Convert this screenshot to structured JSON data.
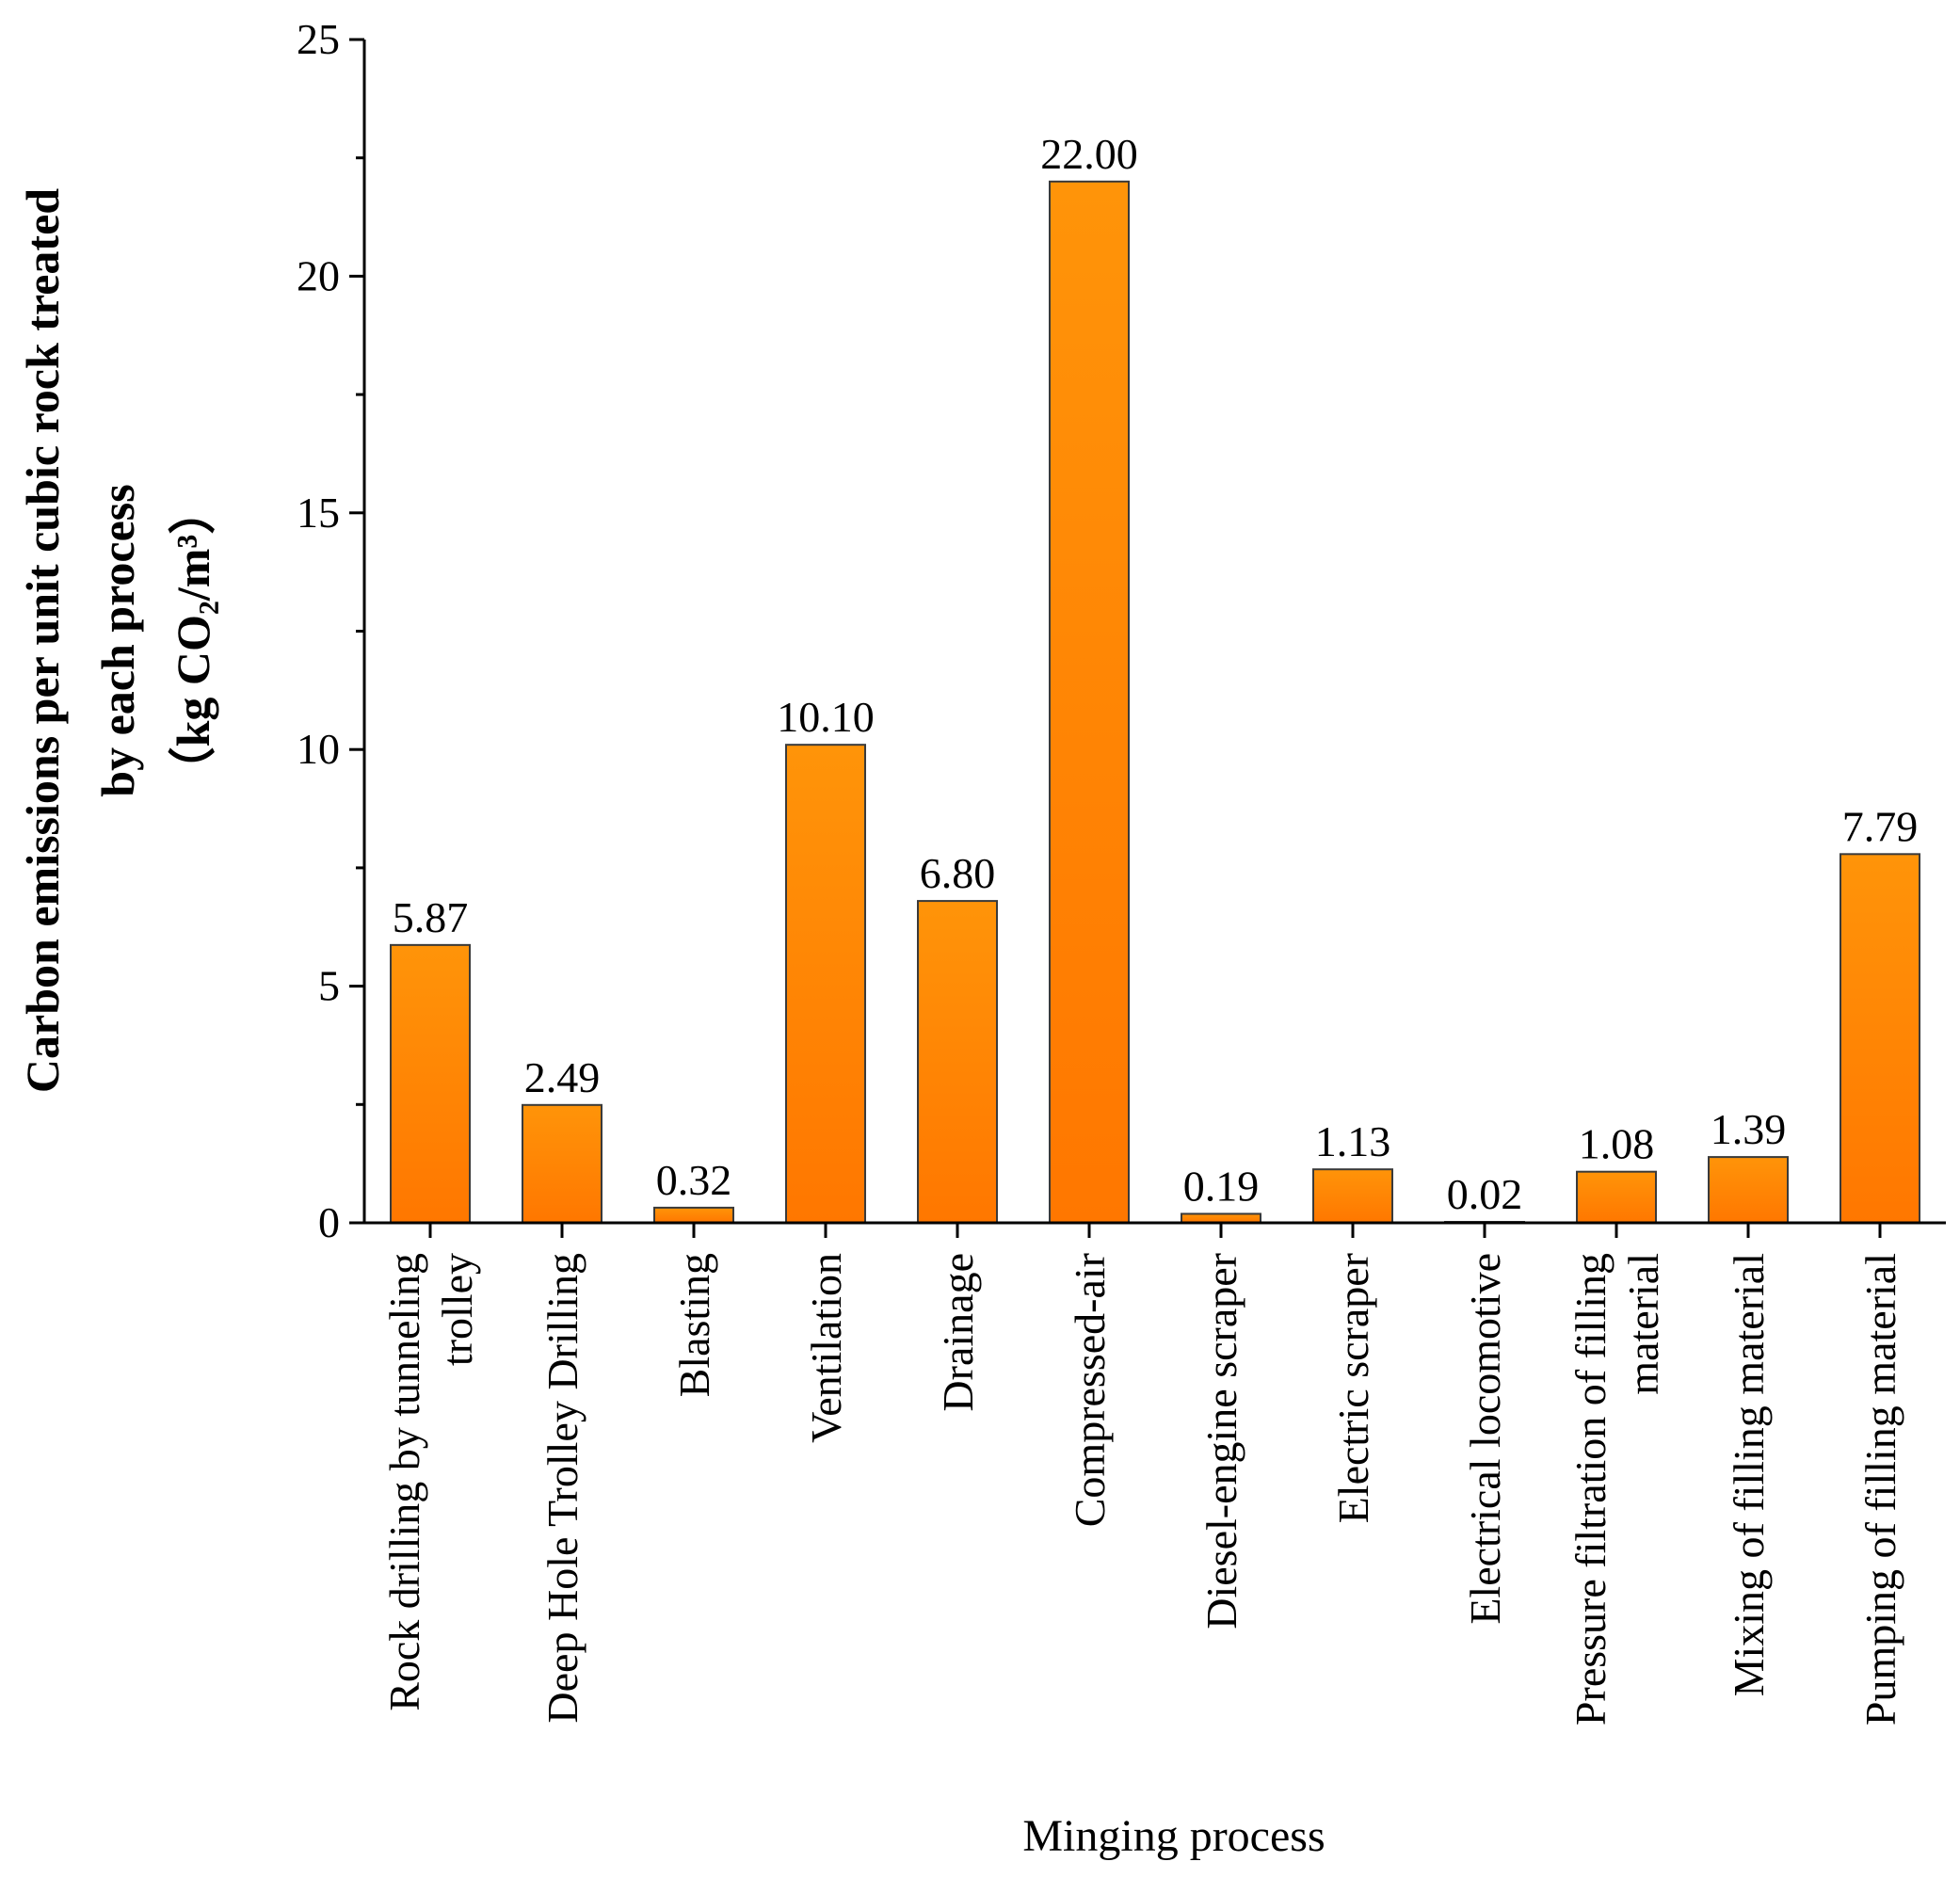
{
  "chart_data": {
    "type": "bar",
    "title": "",
    "xlabel": "Minging process",
    "ylabel_lines": [
      "Carbon emissions per unit cubic rock treated",
      "by each process",
      "（kg CO₂/m³）"
    ],
    "ylim": [
      0,
      25
    ],
    "yticks": [
      0,
      5,
      10,
      15,
      20,
      25
    ],
    "ytick_labels": [
      "0",
      "5",
      "10",
      "15",
      "20",
      "25"
    ],
    "categories": [
      [
        "Rock drilling by tunneling",
        "trolley"
      ],
      [
        "Deep Hole Trolley Drilling"
      ],
      [
        "Blasting"
      ],
      [
        "Ventilation"
      ],
      [
        "Drainage"
      ],
      [
        "Compressed-air"
      ],
      [
        "Diesel-engine scraper"
      ],
      [
        "Electric scraper"
      ],
      [
        "Electrical locomotive"
      ],
      [
        "Pressure filtration of filling",
        "material"
      ],
      [
        "Mixing of filling material"
      ],
      [
        "Pumping of filling material"
      ]
    ],
    "values": [
      5.87,
      2.49,
      0.32,
      10.1,
      6.8,
      22.0,
      0.19,
      1.13,
      0.02,
      1.08,
      1.39,
      7.79
    ],
    "value_labels": [
      "5.87",
      "2.49",
      "0.32",
      "10.10",
      "6.80",
      "22.00",
      "0.19",
      "1.13",
      "0.02",
      "1.08",
      "1.39",
      "7.79"
    ],
    "bar_color_top": "#ff9409",
    "bar_color_bottom": "#ff7700",
    "bar_edge_color": "#3a3a3a",
    "grid": false
  }
}
